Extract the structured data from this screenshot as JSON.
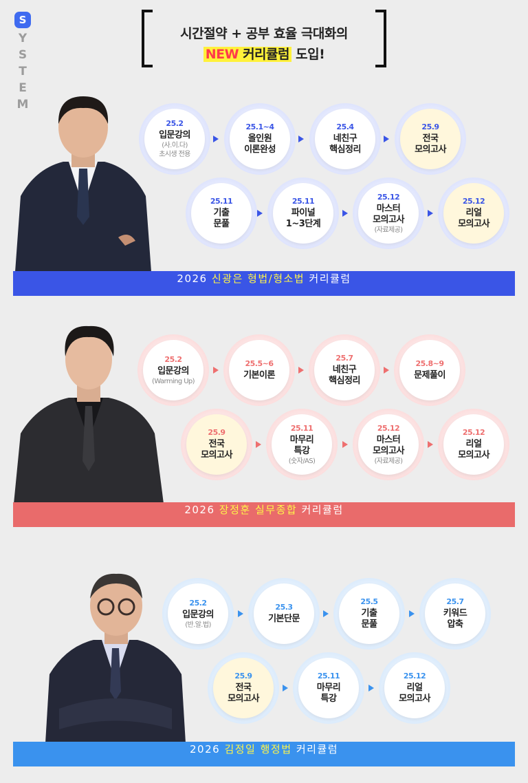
{
  "system": {
    "badge": "S",
    "letters": [
      "Y",
      "S",
      "T",
      "E",
      "M"
    ]
  },
  "header": {
    "line1": "시간절약 + 공부 효율 극대화의",
    "line2_new": "NEW",
    "line2_curriculum": "커리큘럼",
    "line2_suffix": "도입!"
  },
  "sections": [
    {
      "theme": "blue",
      "banner": {
        "year": "2026",
        "name": "신광은 형법/형소법",
        "suffix": "커리큘럼",
        "color": "#3a55e6"
      },
      "rows": [
        [
          {
            "date": "25.2",
            "title": "입문강의",
            "sub": "(사.이.다)",
            "sub2": "초시생 전용",
            "fill": "white"
          },
          {
            "date": "25.1~4",
            "title": "올인원",
            "title2": "이론완성",
            "fill": "white"
          },
          {
            "date": "25.4",
            "title": "네친구",
            "title2": "핵심정리",
            "fill": "white"
          },
          {
            "date": "25.9",
            "title": "전국",
            "title2": "모의고사",
            "fill": "yellow"
          }
        ],
        [
          {
            "date": "25.11",
            "title": "기출",
            "title2": "문풀",
            "fill": "white"
          },
          {
            "date": "25.11",
            "title": "파이널",
            "title2": "1~3단계",
            "fill": "white"
          },
          {
            "date": "25.12",
            "title": "마스터",
            "title2": "모의고사",
            "sub": "(자료제공)",
            "fill": "white"
          },
          {
            "date": "25.12",
            "title": "리얼",
            "title2": "모의고사",
            "fill": "yellow"
          }
        ]
      ]
    },
    {
      "theme": "red",
      "banner": {
        "year": "2026",
        "name": "장정훈 실무종합",
        "suffix": "커리큘럼",
        "color": "#e96b6b"
      },
      "rows": [
        [
          {
            "date": "25.2",
            "title": "입문강의",
            "sub": "(Warming Up)",
            "fill": "white"
          },
          {
            "date": "25.5~6",
            "title": "기본이론",
            "fill": "white"
          },
          {
            "date": "25.7",
            "title": "네친구",
            "title2": "핵심정리",
            "fill": "white"
          },
          {
            "date": "25.8~9",
            "title": "문제풀이",
            "fill": "white"
          }
        ],
        [
          {
            "date": "25.9",
            "title": "전국",
            "title2": "모의고사",
            "fill": "yellow"
          },
          {
            "date": "25.11",
            "title": "마무리",
            "title2": "특강",
            "sub": "(숫자/AS)",
            "fill": "white"
          },
          {
            "date": "25.12",
            "title": "마스터",
            "title2": "모의고사",
            "sub": "(자료제공)",
            "fill": "white"
          },
          {
            "date": "25.12",
            "title": "리얼",
            "title2": "모의고사",
            "fill": "white"
          }
        ]
      ]
    },
    {
      "theme": "sky",
      "banner": {
        "year": "2026",
        "name": "김정일 행정법",
        "suffix": "커리큘럼",
        "color": "#3a92ee"
      },
      "rows": [
        [
          {
            "date": "25.2",
            "title": "입문강의",
            "sub": "(반.알.법)",
            "fill": "white"
          },
          {
            "date": "25.3",
            "title": "기본단문",
            "fill": "white"
          },
          {
            "date": "25.5",
            "title": "기출",
            "title2": "문풀",
            "fill": "white"
          },
          {
            "date": "25.7",
            "title": "키워드",
            "title2": "압축",
            "fill": "white"
          }
        ],
        [
          {
            "date": "25.9",
            "title": "전국",
            "title2": "모의고사",
            "fill": "yellow"
          },
          {
            "date": "25.11",
            "title": "마무리",
            "title2": "특강",
            "fill": "white"
          },
          {
            "date": "25.12",
            "title": "리얼",
            "title2": "모의고사",
            "fill": "white"
          }
        ]
      ]
    }
  ]
}
